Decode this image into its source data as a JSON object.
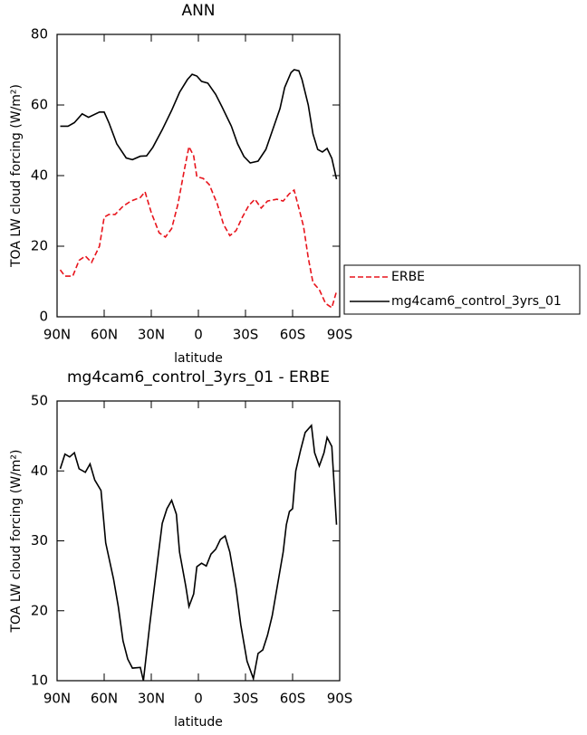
{
  "chart_data": [
    {
      "type": "line",
      "title": "ANN",
      "xlabel": "latitude",
      "ylabel": "TOA LW cloud forcing (W/m²)",
      "xlim": [
        90,
        -90
      ],
      "xticks": [
        {
          "value": 90,
          "label": "90N"
        },
        {
          "value": 60,
          "label": "60N"
        },
        {
          "value": 30,
          "label": "30N"
        },
        0,
        {
          "value": -30,
          "label": "30S"
        },
        {
          "value": -60,
          "label": "60S"
        },
        {
          "value": -90,
          "label": "90S"
        }
      ],
      "ylim": [
        0,
        80
      ],
      "yticks": [
        0,
        20,
        40,
        60,
        80
      ],
      "legend": "right",
      "series": [
        {
          "name": "ERBE",
          "color": "#e8141c",
          "line_style": "dashed",
          "x": [
            88,
            85,
            80,
            76,
            72,
            68,
            63,
            60,
            57,
            53,
            48,
            43,
            37,
            34,
            30,
            25,
            21,
            17,
            13,
            9,
            6,
            3,
            1,
            -3,
            -7,
            -12,
            -16,
            -20,
            -24,
            -28,
            -32,
            -36,
            -40,
            -44,
            -50,
            -54,
            -58,
            -61,
            -64,
            -67,
            -70,
            -73,
            -77,
            -81,
            -85,
            -88
          ],
          "values": [
            13.3,
            11.5,
            11.5,
            16,
            17.2,
            15.4,
            20,
            28.2,
            29,
            29,
            31.3,
            32.8,
            33.8,
            35.4,
            29.5,
            23.8,
            22.6,
            25,
            32,
            41.5,
            48.2,
            45.6,
            39.7,
            39.2,
            37.4,
            32,
            26.2,
            23,
            24.4,
            28.2,
            31.5,
            33.3,
            30.8,
            32.8,
            33.3,
            32.8,
            34.9,
            35.9,
            30.8,
            25.6,
            16.7,
            9.7,
            7.7,
            3.8,
            2.6,
            7.2
          ]
        },
        {
          "name": "mg4cam6_control_3yrs_01",
          "color": "#000000",
          "line_style": "solid",
          "x": [
            88,
            83,
            79,
            74,
            70,
            63,
            60,
            57,
            52,
            46,
            42,
            37,
            33,
            29,
            23,
            17,
            12,
            7,
            4,
            1,
            -2,
            -6,
            -11,
            -15,
            -21,
            -25,
            -29,
            -33,
            -38,
            -43,
            -47,
            -52,
            -55,
            -59,
            -61,
            -64,
            -66,
            -70,
            -73,
            -76,
            -79,
            -82,
            -85,
            -88
          ],
          "values": [
            54,
            54,
            55,
            57.5,
            56.5,
            58,
            58,
            55,
            49,
            45,
            44.5,
            45.5,
            45.6,
            48,
            53,
            58.5,
            63.6,
            67.2,
            68.7,
            68.2,
            66.7,
            66.2,
            63,
            59.5,
            54,
            49,
            45.4,
            43.6,
            44.1,
            47.4,
            52.6,
            59,
            65,
            69.2,
            70,
            69.7,
            67.2,
            60,
            51.8,
            47.4,
            46.7,
            47.7,
            44.9,
            39
          ]
        }
      ]
    },
    {
      "type": "line",
      "title": "mg4cam6_control_3yrs_01 - ERBE",
      "xlabel": "latitude",
      "ylabel": "TOA LW cloud forcing (W/m²)",
      "xlim": [
        90,
        -90
      ],
      "xticks": [
        {
          "value": 90,
          "label": "90N"
        },
        {
          "value": 60,
          "label": "60N"
        },
        {
          "value": 30,
          "label": "30N"
        },
        0,
        {
          "value": -30,
          "label": "30S"
        },
        {
          "value": -60,
          "label": "60S"
        },
        {
          "value": -90,
          "label": "90S"
        }
      ],
      "ylim": [
        10,
        50
      ],
      "yticks": [
        10,
        20,
        30,
        40,
        50
      ],
      "series": [
        {
          "color": "#000000",
          "line_style": "solid",
          "x": [
            88,
            85,
            82,
            79,
            76,
            72,
            69,
            66,
            62,
            59,
            54,
            51,
            48,
            45,
            42,
            37,
            35,
            31,
            26,
            23,
            20,
            17,
            14,
            12,
            8,
            6,
            3,
            1,
            -2,
            -5,
            -8,
            -11,
            -14,
            -17,
            -20,
            -24,
            -27,
            -31,
            -35,
            -38,
            -41,
            -44,
            -47,
            -50,
            -54,
            -56,
            -58,
            -60,
            -62,
            -65,
            -68,
            -72,
            -74,
            -77,
            -80,
            -82,
            -85,
            -88
          ],
          "values": [
            40.3,
            42.4,
            42,
            42.6,
            40.3,
            39.8,
            41,
            38.7,
            37.2,
            29.7,
            24.5,
            20.6,
            15.7,
            13.1,
            11.8,
            11.9,
            10,
            18,
            27.1,
            32.5,
            34.6,
            35.8,
            33.8,
            28.4,
            23.5,
            20.6,
            22.4,
            26.3,
            26.8,
            26.4,
            28.1,
            28.8,
            30.2,
            30.7,
            28.4,
            23.2,
            18,
            12.8,
            10.3,
            13.9,
            14.4,
            16.5,
            19.3,
            23.2,
            28.4,
            32.3,
            34.2,
            34.6,
            40,
            42.9,
            45.5,
            46.5,
            42.6,
            40.7,
            42.6,
            44.8,
            43.5,
            32.3
          ]
        }
      ]
    }
  ]
}
